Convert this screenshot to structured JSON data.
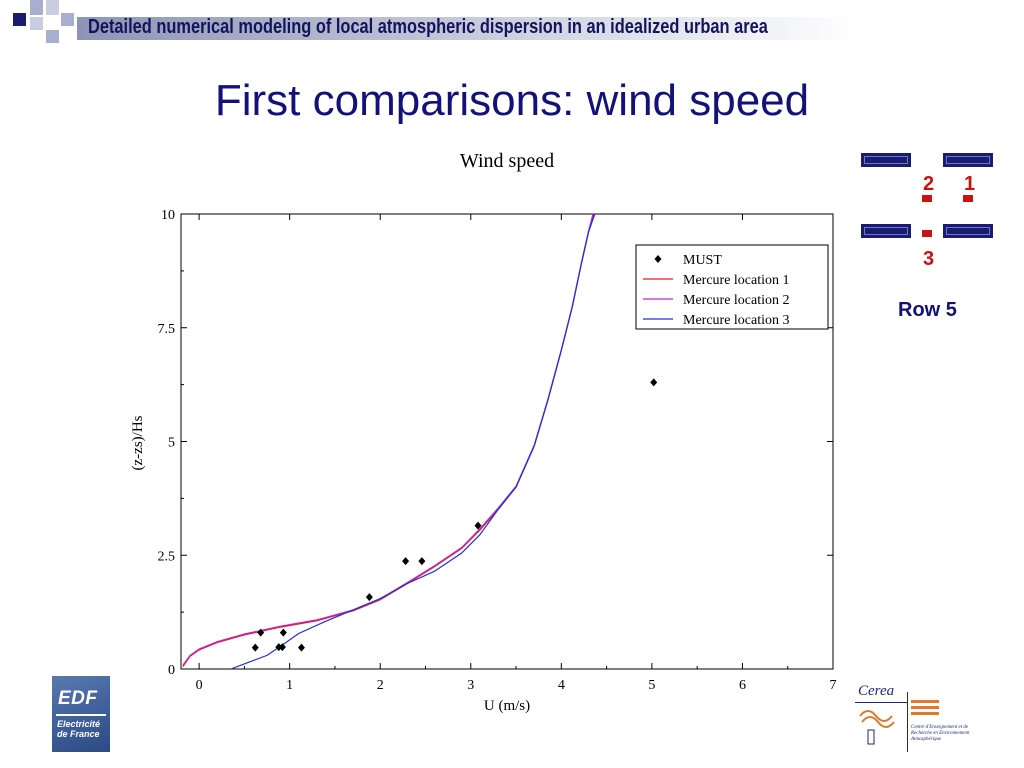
{
  "banner": {
    "text": "Detailed numerical modeling of local atmospheric dispersion in an idealized urban area",
    "colors": {
      "dark": "#1b1b72",
      "light": "#a7aed0"
    }
  },
  "slide": {
    "title": "First comparisons: wind speed"
  },
  "chart_data": {
    "type": "line",
    "title": "Wind speed",
    "xlabel": "U (m/s)",
    "ylabel": "(z-zs)/Hs",
    "xlim": [
      -0.2,
      7
    ],
    "ylim": [
      0,
      10
    ],
    "x_ticks": [
      0,
      1,
      2,
      3,
      4,
      5,
      6,
      7
    ],
    "y_ticks": [
      0,
      2.5,
      5,
      7.5,
      10
    ],
    "y_tick_labels": [
      "0",
      "2.5",
      "5",
      "7.5",
      "10"
    ],
    "grid": false,
    "legend_position": "top-right",
    "scatter_series": {
      "name": "MUST",
      "marker": "diamond",
      "color": "#000000",
      "points": [
        [
          0.62,
          0.47
        ],
        [
          0.68,
          0.8
        ],
        [
          0.88,
          0.48
        ],
        [
          0.92,
          0.48
        ],
        [
          0.93,
          0.8
        ],
        [
          1.13,
          0.47
        ],
        [
          1.88,
          1.58
        ],
        [
          2.28,
          2.37
        ],
        [
          2.46,
          2.37
        ],
        [
          3.08,
          3.15
        ],
        [
          5.02,
          6.3
        ]
      ]
    },
    "series": [
      {
        "name": "Mercure location 1",
        "color": "#e02020",
        "points": [
          [
            -0.18,
            0.05
          ],
          [
            -0.1,
            0.28
          ],
          [
            0.0,
            0.42
          ],
          [
            0.2,
            0.58
          ],
          [
            0.5,
            0.75
          ],
          [
            0.9,
            0.92
          ],
          [
            1.3,
            1.06
          ],
          [
            1.7,
            1.28
          ],
          [
            2.0,
            1.52
          ],
          [
            2.3,
            1.88
          ],
          [
            2.6,
            2.25
          ],
          [
            2.9,
            2.65
          ],
          [
            3.1,
            3.05
          ],
          [
            3.3,
            3.5
          ],
          [
            3.5,
            4.0
          ],
          [
            3.7,
            4.9
          ],
          [
            3.85,
            5.9
          ],
          [
            4.0,
            7.0
          ],
          [
            4.12,
            7.95
          ],
          [
            4.22,
            8.9
          ],
          [
            4.3,
            9.6
          ],
          [
            4.36,
            10.0
          ]
        ]
      },
      {
        "name": "Mercure location 2",
        "color": "#c020d0",
        "points": [
          [
            -0.18,
            0.08
          ],
          [
            -0.1,
            0.3
          ],
          [
            0.0,
            0.44
          ],
          [
            0.2,
            0.6
          ],
          [
            0.5,
            0.77
          ],
          [
            0.9,
            0.94
          ],
          [
            1.3,
            1.08
          ],
          [
            1.7,
            1.3
          ],
          [
            2.0,
            1.54
          ],
          [
            2.3,
            1.9
          ],
          [
            2.6,
            2.27
          ],
          [
            2.9,
            2.67
          ],
          [
            3.1,
            3.08
          ],
          [
            3.3,
            3.53
          ],
          [
            3.5,
            4.02
          ],
          [
            3.7,
            4.92
          ],
          [
            3.85,
            5.92
          ],
          [
            4.0,
            7.02
          ],
          [
            4.12,
            7.97
          ],
          [
            4.22,
            8.92
          ],
          [
            4.3,
            9.62
          ],
          [
            4.35,
            10.0
          ]
        ]
      },
      {
        "name": "Mercure location 3",
        "color": "#2030d8",
        "points": [
          [
            0.35,
            0.0
          ],
          [
            0.55,
            0.15
          ],
          [
            0.75,
            0.3
          ],
          [
            0.9,
            0.5
          ],
          [
            1.1,
            0.78
          ],
          [
            1.4,
            1.05
          ],
          [
            1.7,
            1.3
          ],
          [
            2.0,
            1.55
          ],
          [
            2.3,
            1.88
          ],
          [
            2.6,
            2.15
          ],
          [
            2.9,
            2.55
          ],
          [
            3.1,
            2.95
          ],
          [
            3.3,
            3.5
          ],
          [
            3.5,
            4.0
          ],
          [
            3.7,
            4.9
          ],
          [
            3.85,
            5.9
          ],
          [
            4.0,
            7.0
          ],
          [
            4.12,
            7.95
          ],
          [
            4.22,
            8.9
          ],
          [
            4.3,
            9.6
          ],
          [
            4.37,
            10.0
          ]
        ]
      }
    ]
  },
  "diagram": {
    "locations": [
      "2",
      "1",
      "3"
    ],
    "row_label": "Row 5",
    "building_color": "#1b1b72",
    "marker_color": "#cc1111"
  },
  "logos": {
    "edf": {
      "name": "EDF",
      "sub1": "Electricité",
      "sub2": "de France"
    },
    "cerea": {
      "name": "Cerea",
      "desc": "Centre d'Enseignement et de Recherche en Environnement Atmosphérique"
    }
  }
}
